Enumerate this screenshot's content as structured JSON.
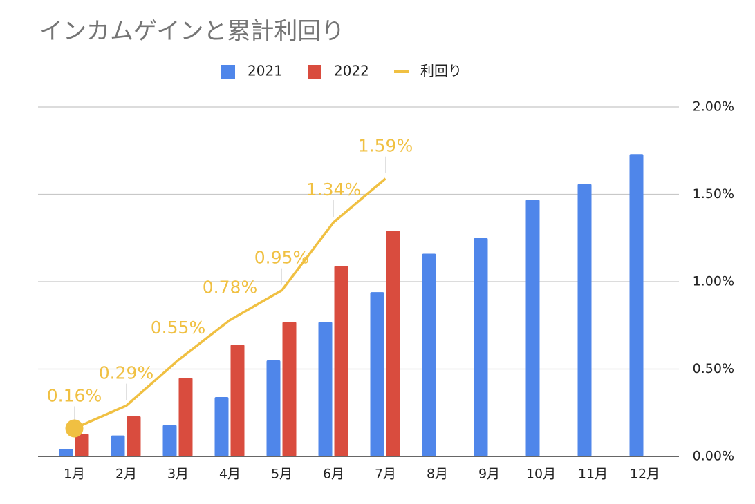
{
  "chart_data": {
    "type": "bar",
    "title": "インカムゲインと累計利回り",
    "categories": [
      "1月",
      "2月",
      "3月",
      "4月",
      "5月",
      "6月",
      "7月",
      "8月",
      "9月",
      "10月",
      "11月",
      "12月"
    ],
    "series": [
      {
        "name": "2021",
        "type": "bar",
        "color": "#4f86ea",
        "values": [
          0.043,
          0.12,
          0.18,
          0.34,
          0.55,
          0.77,
          0.94,
          1.16,
          1.25,
          1.47,
          1.56,
          1.73
        ]
      },
      {
        "name": "2022",
        "type": "bar",
        "color": "#d94c3e",
        "values": [
          0.13,
          0.23,
          0.45,
          0.64,
          0.77,
          1.09,
          1.29,
          null,
          null,
          null,
          null,
          null
        ]
      },
      {
        "name": "利回り",
        "type": "line",
        "color": "#f0c042",
        "values": [
          0.16,
          0.29,
          0.55,
          0.78,
          0.95,
          1.34,
          1.59,
          null,
          null,
          null,
          null,
          null
        ],
        "value_labels": [
          "0.16%",
          "0.29%",
          "0.55%",
          "0.78%",
          "0.95%",
          "1.34%",
          "1.59%",
          null,
          null,
          null,
          null,
          null
        ]
      }
    ],
    "ylim": [
      0,
      2
    ],
    "yticks": [
      {
        "value": 0,
        "label": "0.00%"
      },
      {
        "value": 0.5,
        "label": "0.50%"
      },
      {
        "value": 1,
        "label": "1.00%"
      },
      {
        "value": 1.5,
        "label": "1.50%"
      },
      {
        "value": 2,
        "label": "2.00%"
      }
    ],
    "grid": true,
    "legend": "top"
  }
}
